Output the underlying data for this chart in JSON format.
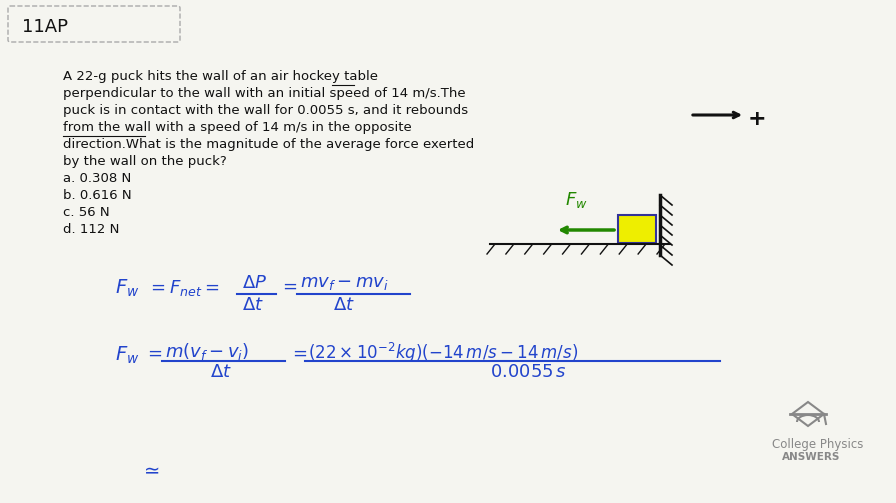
{
  "bg_color": "#f5f5f0",
  "title_box_text": "11AP",
  "problem_text": "A 22-g puck hits the wall of an air hockey table\nperpendicular to the wall with an initial speed of 14 m/s.The\npuck is in contact with the wall for 0.0055 s, and it rebounds\nfrom the wall with a speed of 14 m/s in the opposite\ndirection.What is the magnitude of the average force exerted\nby the wall on the puck?",
  "answers": [
    "a. 0.308 N",
    "b. 0.616 N",
    "c. 56 N",
    "d. 112 N"
  ],
  "blue_color": "#2244cc",
  "green_color": "#228800",
  "dark_color": "#111111",
  "gray_color": "#888888",
  "logo_text1": "College Physics",
  "logo_text2": "ANSWERS"
}
